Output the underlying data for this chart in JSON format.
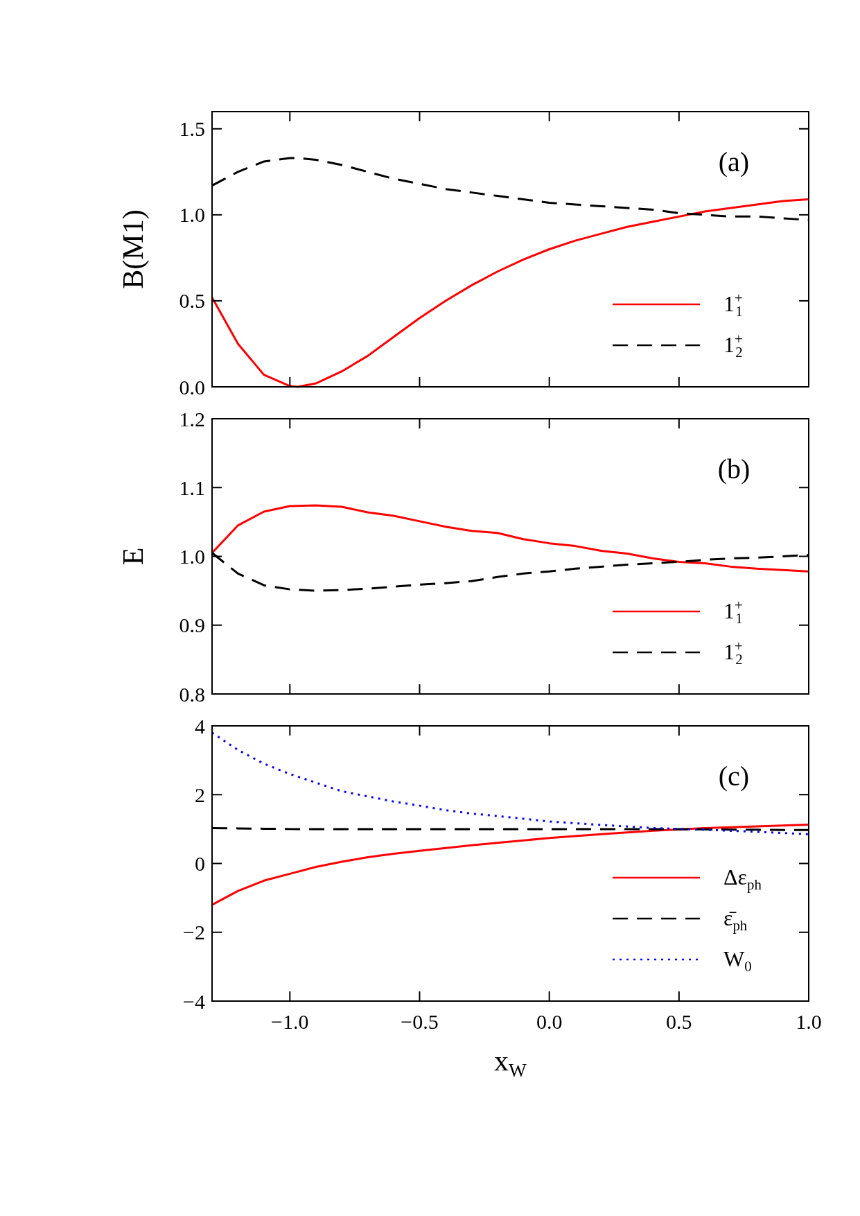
{
  "chart_data": [
    {
      "type": "line",
      "ylabel": "B(M1)",
      "annotations": [
        "(a)"
      ],
      "xlim": [
        -1.3,
        1.0
      ],
      "xticks": [
        -1.0,
        -0.5,
        0.0,
        0.5,
        1.0
      ],
      "ylim": [
        0,
        1.6
      ],
      "yticks": [
        {
          "value": 0,
          "label": "0.0"
        },
        0.5,
        {
          "value": 1,
          "label": "1.0"
        },
        1.5
      ],
      "tick_labels": "y",
      "legend": "bottom right",
      "grid": false,
      "x": [
        -1.3,
        -1.2,
        -1.1,
        -1.0,
        -0.97,
        -0.9,
        -0.8,
        -0.7,
        -0.6,
        -0.5,
        -0.4,
        -0.3,
        -0.2,
        -0.1,
        0.0,
        0.1,
        0.2,
        0.3,
        0.4,
        0.5,
        0.6,
        0.7,
        0.8,
        0.9,
        1.0
      ],
      "series": [
        {
          "name": "1$^{+}$$_{1}$",
          "color": "#ff0000",
          "line_style": "solid",
          "values": [
            0.52,
            0.25,
            0.07,
            0.005,
            0.0,
            0.02,
            0.09,
            0.18,
            0.29,
            0.4,
            0.5,
            0.59,
            0.67,
            0.74,
            0.8,
            0.85,
            0.89,
            0.93,
            0.96,
            0.99,
            1.02,
            1.04,
            1.06,
            1.08,
            1.09
          ]
        },
        {
          "name": "1$^{+}$$_{2}$",
          "color": "#000000",
          "line_style": "dashed",
          "values": [
            1.17,
            1.25,
            1.31,
            1.33,
            1.33,
            1.32,
            1.29,
            1.25,
            1.21,
            1.18,
            1.15,
            1.13,
            1.11,
            1.09,
            1.07,
            1.06,
            1.05,
            1.04,
            1.03,
            1.01,
            1.0,
            0.99,
            0.99,
            0.98,
            0.97
          ]
        }
      ]
    },
    {
      "type": "line",
      "ylabel": "E",
      "annotations": [
        "(b)"
      ],
      "xlim": [
        -1.3,
        1.0
      ],
      "xticks": [
        -1.0,
        -0.5,
        0.0,
        0.5,
        1.0
      ],
      "ylim": [
        0.8,
        1.2
      ],
      "yticks": [
        0.8,
        0.9,
        {
          "value": 1,
          "label": "1.0"
        },
        1.1,
        1.2
      ],
      "tick_labels": "y",
      "legend": "bottom right",
      "grid": false,
      "x": [
        -1.3,
        -1.2,
        -1.1,
        -1.0,
        -0.9,
        -0.8,
        -0.7,
        -0.6,
        -0.5,
        -0.4,
        -0.3,
        -0.2,
        -0.1,
        0.0,
        0.1,
        0.2,
        0.3,
        0.4,
        0.5,
        0.6,
        0.7,
        0.8,
        1.0
      ],
      "series": [
        {
          "name": "1$^{+}$$_{1}$",
          "color": "#ff0000",
          "line_style": "solid",
          "values": [
            1.005,
            1.045,
            1.065,
            1.073,
            1.074,
            1.072,
            1.064,
            1.059,
            1.051,
            1.043,
            1.037,
            1.034,
            1.025,
            1.019,
            1.015,
            1.008,
            1.004,
            0.997,
            0.992,
            0.99,
            0.985,
            0.982,
            0.978
          ]
        },
        {
          "name": "1$^{+}$$_{2}$",
          "color": "#000000",
          "line_style": "dashed",
          "values": [
            1.005,
            0.975,
            0.958,
            0.952,
            0.95,
            0.951,
            0.953,
            0.956,
            0.959,
            0.961,
            0.964,
            0.97,
            0.975,
            0.978,
            0.982,
            0.985,
            0.988,
            0.99,
            0.992,
            0.995,
            0.997,
            0.998,
            1.002
          ]
        }
      ]
    },
    {
      "type": "line",
      "xlabel": "x$_{W}$",
      "annotations": [
        "(c)"
      ],
      "xlim": [
        -1.3,
        1.0
      ],
      "xticks": [
        {
          "value": -1,
          "label": "−1.0"
        },
        {
          "value": -0.5,
          "label": "−0.5"
        },
        {
          "value": 0,
          "label": "0.0"
        },
        0.5,
        {
          "value": 1,
          "label": "1.0"
        }
      ],
      "ylim": [
        -4,
        4
      ],
      "yticks": [
        {
          "value": -4,
          "label": "−4"
        },
        {
          "value": -2,
          "label": "−2"
        },
        0,
        2,
        4
      ],
      "legend": "bottom right",
      "grid": false,
      "x": [
        -1.3,
        -1.2,
        -1.1,
        -1.0,
        -0.9,
        -0.8,
        -0.7,
        -0.6,
        -0.5,
        -0.4,
        -0.3,
        -0.2,
        -0.1,
        0.0,
        0.2,
        0.4,
        0.6,
        0.8,
        1.0
      ],
      "series": [
        {
          "name": "Δε$_{ph}$",
          "color": "#ff0000",
          "line_style": "solid",
          "values": [
            -1.2,
            -0.8,
            -0.5,
            -0.3,
            -0.1,
            0.05,
            0.18,
            0.28,
            0.37,
            0.45,
            0.53,
            0.6,
            0.67,
            0.74,
            0.85,
            0.95,
            1.03,
            1.08,
            1.13
          ]
        },
        {
          "name": "ε̄$_{ph}$",
          "color": "#000000",
          "line_style": "dashed",
          "values": [
            1.03,
            1.02,
            1.01,
            1.0,
            1.0,
            1.0,
            1.0,
            1.0,
            1.0,
            1.0,
            1.0,
            1.0,
            1.0,
            1.0,
            1.0,
            1.0,
            0.99,
            0.98,
            0.97
          ]
        },
        {
          "name": "W$_{0}$",
          "color": "#0000ff",
          "line_style": "dotted",
          "values": [
            3.8,
            3.3,
            2.9,
            2.6,
            2.35,
            2.1,
            1.95,
            1.8,
            1.68,
            1.55,
            1.45,
            1.38,
            1.3,
            1.22,
            1.12,
            1.03,
            0.98,
            0.92,
            0.85
          ]
        }
      ]
    }
  ]
}
